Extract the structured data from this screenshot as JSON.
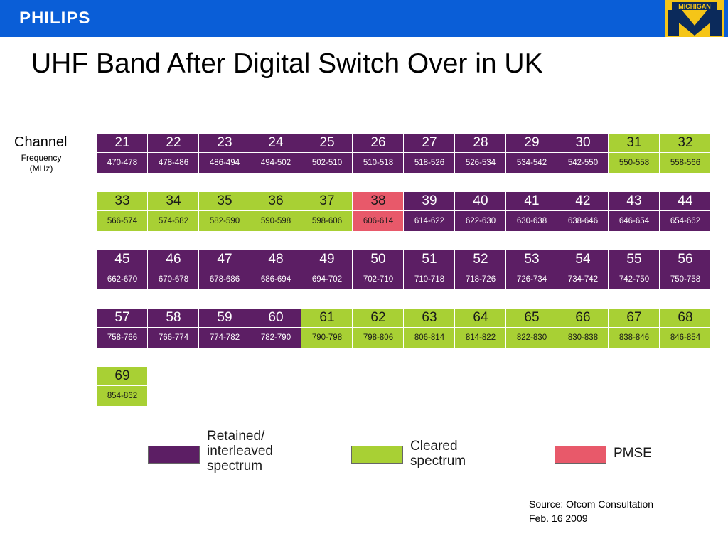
{
  "header": {
    "brand": "PHILIPS",
    "logo_text": "MICHIGAN",
    "logo_letter": "M"
  },
  "title": "UHF Band After Digital Switch Over in UK",
  "labels": {
    "channel": "Channel",
    "frequency": "Frequency",
    "unit": "(MHz)"
  },
  "colors": {
    "retained": "#5c1e64",
    "cleared": "#a8d034",
    "pmse": "#e8596a",
    "brand_blue": "#0a5ed7",
    "logo_maize": "#f5c518",
    "logo_navy": "#0b2a5b"
  },
  "channels": [
    {
      "ch": "21",
      "freq": "470-478",
      "status": "retained"
    },
    {
      "ch": "22",
      "freq": "478-486",
      "status": "retained"
    },
    {
      "ch": "23",
      "freq": "486-494",
      "status": "retained"
    },
    {
      "ch": "24",
      "freq": "494-502",
      "status": "retained"
    },
    {
      "ch": "25",
      "freq": "502-510",
      "status": "retained"
    },
    {
      "ch": "26",
      "freq": "510-518",
      "status": "retained"
    },
    {
      "ch": "27",
      "freq": "518-526",
      "status": "retained"
    },
    {
      "ch": "28",
      "freq": "526-534",
      "status": "retained"
    },
    {
      "ch": "29",
      "freq": "534-542",
      "status": "retained"
    },
    {
      "ch": "30",
      "freq": "542-550",
      "status": "retained"
    },
    {
      "ch": "31",
      "freq": "550-558",
      "status": "cleared"
    },
    {
      "ch": "32",
      "freq": "558-566",
      "status": "cleared"
    },
    {
      "ch": "33",
      "freq": "566-574",
      "status": "cleared"
    },
    {
      "ch": "34",
      "freq": "574-582",
      "status": "cleared"
    },
    {
      "ch": "35",
      "freq": "582-590",
      "status": "cleared"
    },
    {
      "ch": "36",
      "freq": "590-598",
      "status": "cleared"
    },
    {
      "ch": "37",
      "freq": "598-606",
      "status": "cleared"
    },
    {
      "ch": "38",
      "freq": "606-614",
      "status": "pmse"
    },
    {
      "ch": "39",
      "freq": "614-622",
      "status": "retained"
    },
    {
      "ch": "40",
      "freq": "622-630",
      "status": "retained"
    },
    {
      "ch": "41",
      "freq": "630-638",
      "status": "retained"
    },
    {
      "ch": "42",
      "freq": "638-646",
      "status": "retained"
    },
    {
      "ch": "43",
      "freq": "646-654",
      "status": "retained"
    },
    {
      "ch": "44",
      "freq": "654-662",
      "status": "retained"
    },
    {
      "ch": "45",
      "freq": "662-670",
      "status": "retained"
    },
    {
      "ch": "46",
      "freq": "670-678",
      "status": "retained"
    },
    {
      "ch": "47",
      "freq": "678-686",
      "status": "retained"
    },
    {
      "ch": "48",
      "freq": "686-694",
      "status": "retained"
    },
    {
      "ch": "49",
      "freq": "694-702",
      "status": "retained"
    },
    {
      "ch": "50",
      "freq": "702-710",
      "status": "retained"
    },
    {
      "ch": "51",
      "freq": "710-718",
      "status": "retained"
    },
    {
      "ch": "52",
      "freq": "718-726",
      "status": "retained"
    },
    {
      "ch": "53",
      "freq": "726-734",
      "status": "retained"
    },
    {
      "ch": "54",
      "freq": "734-742",
      "status": "retained"
    },
    {
      "ch": "55",
      "freq": "742-750",
      "status": "retained"
    },
    {
      "ch": "56",
      "freq": "750-758",
      "status": "retained"
    },
    {
      "ch": "57",
      "freq": "758-766",
      "status": "retained"
    },
    {
      "ch": "58",
      "freq": "766-774",
      "status": "retained"
    },
    {
      "ch": "59",
      "freq": "774-782",
      "status": "retained"
    },
    {
      "ch": "60",
      "freq": "782-790",
      "status": "retained"
    },
    {
      "ch": "61",
      "freq": "790-798",
      "status": "cleared"
    },
    {
      "ch": "62",
      "freq": "798-806",
      "status": "cleared"
    },
    {
      "ch": "63",
      "freq": "806-814",
      "status": "cleared"
    },
    {
      "ch": "64",
      "freq": "814-822",
      "status": "cleared"
    },
    {
      "ch": "65",
      "freq": "822-830",
      "status": "cleared"
    },
    {
      "ch": "66",
      "freq": "830-838",
      "status": "cleared"
    },
    {
      "ch": "67",
      "freq": "838-846",
      "status": "cleared"
    },
    {
      "ch": "68",
      "freq": "846-854",
      "status": "cleared"
    },
    {
      "ch": "69",
      "freq": "854-862",
      "status": "cleared"
    }
  ],
  "legend": {
    "retained": [
      "Retained/",
      "interleaved",
      "spectrum"
    ],
    "cleared": [
      "Cleared",
      "spectrum"
    ],
    "pmse": [
      "PMSE"
    ]
  },
  "source": {
    "line1": "Source:  Ofcom Consultation",
    "line2": "Feb. 16 2009"
  }
}
